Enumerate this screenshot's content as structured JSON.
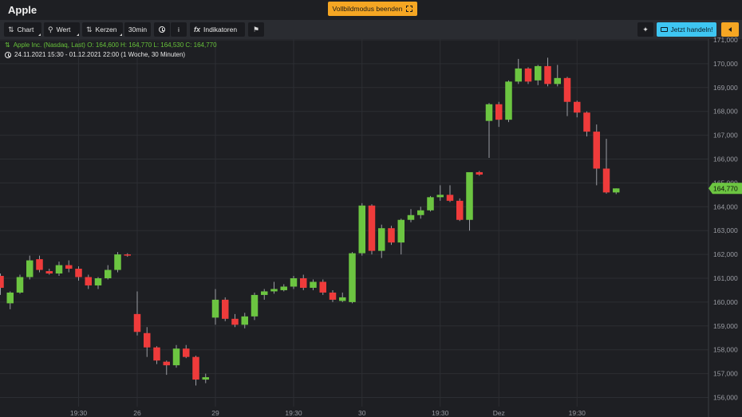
{
  "window": {
    "title": "Apple"
  },
  "header": {
    "fullscreen_exit_label": "Vollbildmodus beenden"
  },
  "toolbar": {
    "chart_label": "Chart",
    "value_label": "Wert",
    "candles_label": "Kerzen",
    "interval_label": "30min",
    "info_label": "i",
    "indicators_label": "Indikatoren",
    "trade_label": "Jetzt handeln!"
  },
  "info": {
    "quote_line": "Apple Inc. (Nasdaq, Last)  O: 164,600  H: 164,770  L: 164,530  C: 164,770",
    "range_line": "24.11.2021 15:30 - 01.12.2021 22:00  (1 Woche, 30 Minuten)"
  },
  "colors": {
    "up": "#6cc541",
    "down": "#ef3b3b",
    "background": "#1e1f23",
    "grid": "#2c2e33",
    "accent": "#f5a623",
    "trade": "#3ec6f2"
  },
  "chart_data": {
    "type": "candlestick",
    "symbol": "Apple Inc. (Nasdaq, Last)",
    "last_price": "164,770",
    "ylim": [
      155.5,
      171.3
    ],
    "y_ticks": [
      156,
      157,
      158,
      159,
      160,
      161,
      162,
      163,
      164,
      165,
      166,
      167,
      168,
      169,
      170,
      171
    ],
    "y_tick_labels": [
      "156,000",
      "157,000",
      "158,000",
      "159,000",
      "160,000",
      "161,000",
      "162,000",
      "163,000",
      "164,000",
      "165,000",
      "166,000",
      "167,000",
      "168,000",
      "169,000",
      "170,000",
      "171,000"
    ],
    "x_ticks": [
      {
        "label": "19:30",
        "index": 8
      },
      {
        "label": "26",
        "index": 14
      },
      {
        "label": "29",
        "index": 22
      },
      {
        "label": "19:30",
        "index": 30
      },
      {
        "label": "30",
        "index": 37
      },
      {
        "label": "19:30",
        "index": 45
      },
      {
        "label": "Dez",
        "index": 51
      },
      {
        "label": "19:30",
        "index": 59
      }
    ],
    "candles": [
      {
        "o": 161.1,
        "h": 161.2,
        "l": 160.3,
        "c": 160.6
      },
      {
        "o": 159.95,
        "h": 160.45,
        "l": 159.7,
        "c": 160.4
      },
      {
        "o": 160.4,
        "h": 161.15,
        "l": 160.35,
        "c": 161.05
      },
      {
        "o": 161.05,
        "h": 161.95,
        "l": 160.95,
        "c": 161.75
      },
      {
        "o": 161.8,
        "h": 161.95,
        "l": 161.25,
        "c": 161.35
      },
      {
        "o": 161.3,
        "h": 161.4,
        "l": 161.15,
        "c": 161.2
      },
      {
        "o": 161.2,
        "h": 161.7,
        "l": 161.1,
        "c": 161.55
      },
      {
        "o": 161.55,
        "h": 161.75,
        "l": 161.25,
        "c": 161.4
      },
      {
        "o": 161.4,
        "h": 161.5,
        "l": 160.9,
        "c": 161.05
      },
      {
        "o": 161.05,
        "h": 161.15,
        "l": 160.55,
        "c": 160.7
      },
      {
        "o": 160.7,
        "h": 161.05,
        "l": 160.55,
        "c": 161.0
      },
      {
        "o": 161.0,
        "h": 161.55,
        "l": 160.95,
        "c": 161.35
      },
      {
        "o": 161.35,
        "h": 162.1,
        "l": 161.25,
        "c": 162.0
      },
      {
        "o": 162.0,
        "h": 162.05,
        "l": 161.9,
        "c": 161.95
      },
      {
        "o": 159.5,
        "h": 160.45,
        "l": 158.6,
        "c": 158.75
      },
      {
        "o": 158.7,
        "h": 158.95,
        "l": 157.7,
        "c": 158.1
      },
      {
        "o": 158.1,
        "h": 158.15,
        "l": 157.4,
        "c": 157.55
      },
      {
        "o": 157.5,
        "h": 157.55,
        "l": 156.95,
        "c": 157.35
      },
      {
        "o": 157.35,
        "h": 158.2,
        "l": 157.25,
        "c": 158.05
      },
      {
        "o": 158.05,
        "h": 158.2,
        "l": 157.65,
        "c": 157.7
      },
      {
        "o": 157.7,
        "h": 157.75,
        "l": 156.5,
        "c": 156.75
      },
      {
        "o": 156.75,
        "h": 157.0,
        "l": 156.6,
        "c": 156.85
      },
      {
        "o": 159.35,
        "h": 160.55,
        "l": 159.05,
        "c": 160.1
      },
      {
        "o": 160.1,
        "h": 160.2,
        "l": 159.2,
        "c": 159.3
      },
      {
        "o": 159.3,
        "h": 159.5,
        "l": 158.95,
        "c": 159.05
      },
      {
        "o": 159.05,
        "h": 159.55,
        "l": 158.9,
        "c": 159.4
      },
      {
        "o": 159.4,
        "h": 160.4,
        "l": 159.25,
        "c": 160.3
      },
      {
        "o": 160.3,
        "h": 160.55,
        "l": 160.1,
        "c": 160.45
      },
      {
        "o": 160.45,
        "h": 160.85,
        "l": 160.35,
        "c": 160.55
      },
      {
        "o": 160.5,
        "h": 160.75,
        "l": 160.45,
        "c": 160.65
      },
      {
        "o": 160.65,
        "h": 161.1,
        "l": 160.55,
        "c": 161.0
      },
      {
        "o": 161.0,
        "h": 161.15,
        "l": 160.5,
        "c": 160.6
      },
      {
        "o": 160.6,
        "h": 160.95,
        "l": 160.5,
        "c": 160.85
      },
      {
        "o": 160.85,
        "h": 160.95,
        "l": 160.3,
        "c": 160.4
      },
      {
        "o": 160.4,
        "h": 160.5,
        "l": 160.0,
        "c": 160.1
      },
      {
        "o": 160.05,
        "h": 160.4,
        "l": 160.0,
        "c": 160.2
      },
      {
        "o": 160.0,
        "h": 162.1,
        "l": 159.95,
        "c": 162.05
      },
      {
        "o": 162.05,
        "h": 164.15,
        "l": 161.95,
        "c": 164.05
      },
      {
        "o": 164.05,
        "h": 164.1,
        "l": 162.0,
        "c": 162.15
      },
      {
        "o": 162.15,
        "h": 163.25,
        "l": 161.85,
        "c": 163.1
      },
      {
        "o": 163.1,
        "h": 163.2,
        "l": 162.4,
        "c": 162.5
      },
      {
        "o": 162.5,
        "h": 163.5,
        "l": 162.0,
        "c": 163.45
      },
      {
        "o": 163.45,
        "h": 163.9,
        "l": 163.35,
        "c": 163.65
      },
      {
        "o": 163.65,
        "h": 164.0,
        "l": 163.5,
        "c": 163.85
      },
      {
        "o": 163.85,
        "h": 164.45,
        "l": 163.8,
        "c": 164.4
      },
      {
        "o": 164.4,
        "h": 164.9,
        "l": 164.25,
        "c": 164.5
      },
      {
        "o": 164.5,
        "h": 164.9,
        "l": 164.2,
        "c": 164.25
      },
      {
        "o": 164.25,
        "h": 164.35,
        "l": 163.4,
        "c": 163.45
      },
      {
        "o": 163.45,
        "h": 165.45,
        "l": 163.0,
        "c": 165.45
      },
      {
        "o": 165.45,
        "h": 165.5,
        "l": 165.3,
        "c": 165.35
      },
      {
        "o": 167.6,
        "h": 168.35,
        "l": 166.05,
        "c": 168.3
      },
      {
        "o": 168.3,
        "h": 168.4,
        "l": 167.35,
        "c": 167.65
      },
      {
        "o": 167.65,
        "h": 169.3,
        "l": 167.55,
        "c": 169.25
      },
      {
        "o": 169.25,
        "h": 170.2,
        "l": 169.15,
        "c": 169.8
      },
      {
        "o": 169.8,
        "h": 169.85,
        "l": 169.15,
        "c": 169.25
      },
      {
        "o": 169.3,
        "h": 169.95,
        "l": 169.1,
        "c": 169.9
      },
      {
        "o": 169.9,
        "h": 170.25,
        "l": 169.05,
        "c": 169.15
      },
      {
        "o": 169.15,
        "h": 169.95,
        "l": 169.05,
        "c": 169.4
      },
      {
        "o": 169.4,
        "h": 169.45,
        "l": 167.8,
        "c": 168.4
      },
      {
        "o": 168.4,
        "h": 168.45,
        "l": 167.75,
        "c": 167.95
      },
      {
        "o": 167.95,
        "h": 168.0,
        "l": 166.95,
        "c": 167.15
      },
      {
        "o": 167.15,
        "h": 167.45,
        "l": 164.9,
        "c": 165.6
      },
      {
        "o": 165.6,
        "h": 166.85,
        "l": 164.55,
        "c": 164.6
      },
      {
        "o": 164.6,
        "h": 164.77,
        "l": 164.53,
        "c": 164.77
      }
    ]
  }
}
